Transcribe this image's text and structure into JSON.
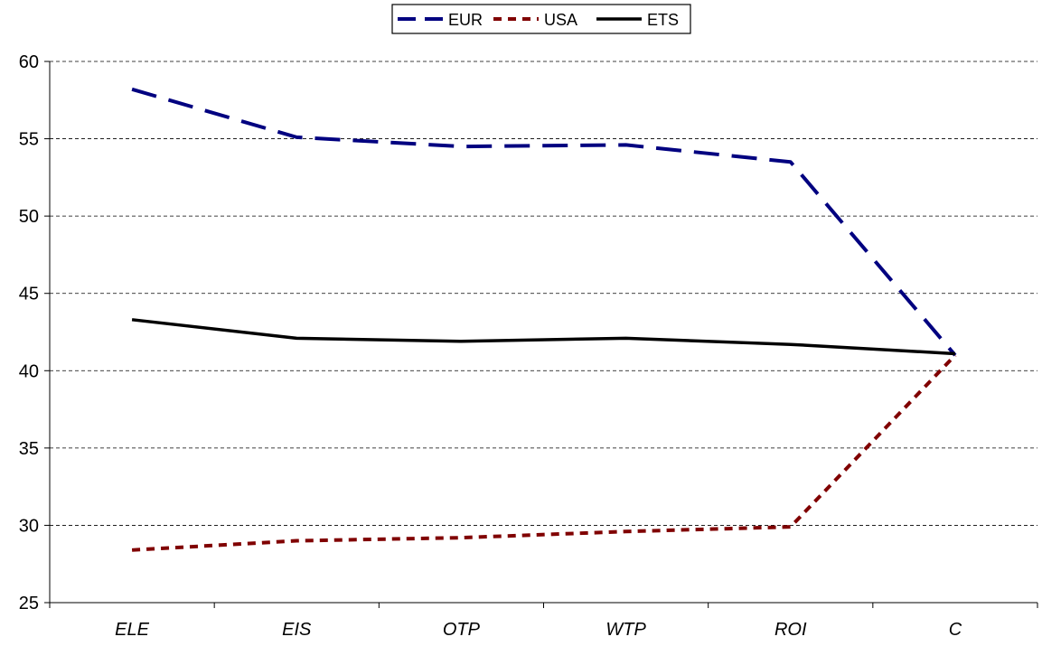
{
  "chart_data": {
    "type": "line",
    "categories": [
      "ELE",
      "EIS",
      "OTP",
      "WTP",
      "ROI",
      "C"
    ],
    "series": [
      {
        "name": "EUR",
        "values": [
          58.2,
          55.1,
          54.5,
          54.6,
          53.5,
          41.0
        ],
        "color": "#000080",
        "dash": "long-dash"
      },
      {
        "name": "USA",
        "values": [
          28.4,
          29.0,
          29.2,
          29.6,
          29.9,
          41.0
        ],
        "color": "#800000",
        "dash": "dotted"
      },
      {
        "name": "ETS",
        "values": [
          43.3,
          42.1,
          41.9,
          42.1,
          41.7,
          41.1
        ],
        "color": "#000000",
        "dash": "solid"
      }
    ],
    "ylim": [
      25,
      60
    ],
    "yticks": [
      25,
      30,
      35,
      40,
      45,
      50,
      55,
      60
    ],
    "grid": "horizontal dashed",
    "legend_position": "top-center"
  }
}
